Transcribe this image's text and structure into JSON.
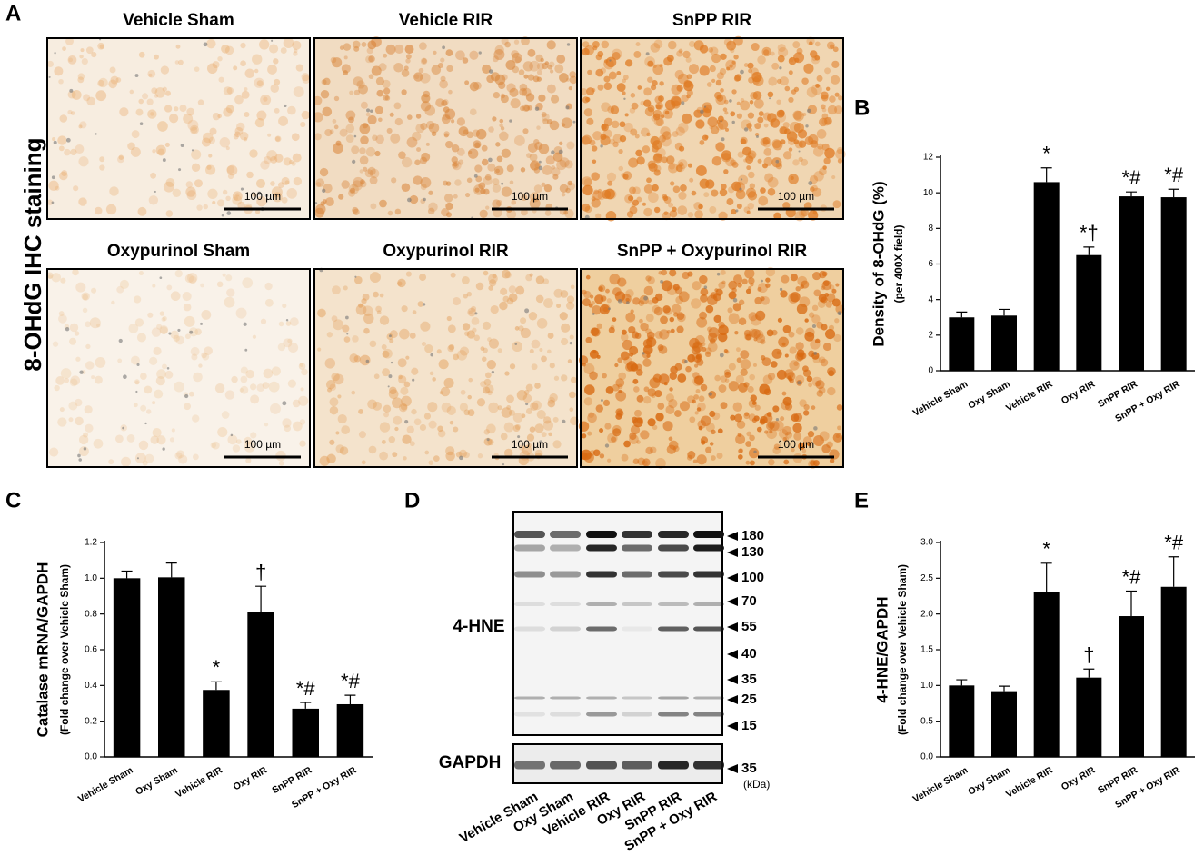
{
  "ihc": {
    "panel": "A",
    "side_label": "8-OHdG IHC staining",
    "titles": [
      "Vehicle Sham",
      "Vehicle RIR",
      "SnPP RIR",
      "Oxypurinol Sham",
      "Oxypurinol RIR",
      "SnPP + Oxypurinol RIR"
    ],
    "scale_bars": [
      "100 µm",
      "100 µm",
      "100 µm",
      "100 µm",
      "100 µm",
      "100 µm"
    ]
  },
  "western": {
    "panel": "D",
    "blot_labels": [
      "4-HNE",
      "GAPDH"
    ],
    "markers": [
      "180",
      "130",
      "100",
      "70",
      "55",
      "40",
      "35",
      "25",
      "15"
    ],
    "gapdh_marker": "35",
    "unit": "(kDa)",
    "lanes": [
      "Vehicle Sham",
      "Oxy Sham",
      "Vehicle RIR",
      "Oxy RIR",
      "SnPP RIR",
      "SnPP + Oxy RIR"
    ]
  },
  "chart_data": [
    {
      "type": "bar",
      "panel": "B",
      "y_label": "Density of 8-OHdG (%)",
      "y_sublabel": "(per 400X field)",
      "categories": [
        "Vehicle Sham",
        "Oxy Sham",
        "Vehicle RIR",
        "Oxy RIR",
        "SnPP RIR",
        "SnPP + Oxy RIR"
      ],
      "values": [
        3.0,
        3.1,
        10.6,
        6.5,
        9.8,
        9.75
      ],
      "error": [
        0.3,
        0.35,
        0.8,
        0.45,
        0.25,
        0.45
      ],
      "annotations": [
        null,
        null,
        "*",
        "*†",
        "*#",
        "*#"
      ],
      "color": "#000000",
      "ylim": [
        0,
        12
      ],
      "yticks": [
        0,
        2,
        4,
        6,
        8,
        10,
        12
      ]
    },
    {
      "type": "bar",
      "panel": "C",
      "y_label": "Catalase mRNA/GAPDH",
      "y_sublabel": "(Fold change over Vehicle Sham)",
      "categories": [
        "Vehicle Sham",
        "Oxy Sham",
        "Vehicle RIR",
        "Oxy RIR",
        "SnPP RIR",
        "SnPP + Oxy RIR"
      ],
      "values": [
        1.0,
        1.005,
        0.375,
        0.81,
        0.27,
        0.295
      ],
      "error": [
        0.04,
        0.08,
        0.045,
        0.145,
        0.035,
        0.05
      ],
      "annotations": [
        null,
        null,
        "*",
        "†",
        "*#",
        "*#"
      ],
      "color": "#000000",
      "ylim": [
        0,
        1.2
      ],
      "yticks": [
        {
          "value": 0,
          "label": "0.0"
        },
        0.2,
        0.4,
        0.6,
        0.8,
        {
          "value": 1,
          "label": "1.0"
        },
        1.2
      ]
    },
    {
      "type": "bar",
      "panel": "E",
      "y_label": "4-HNE/GAPDH",
      "y_sublabel": "(Fold change over Vehicle Sham)",
      "categories": [
        "Vehicle Sham",
        "Oxy Sham",
        "Vehicle RIR",
        "Oxy RIR",
        "SnPP RIR",
        "SnPP + Oxy RIR"
      ],
      "values": [
        1.0,
        0.92,
        2.31,
        1.11,
        1.97,
        2.38
      ],
      "error": [
        0.08,
        0.07,
        0.4,
        0.12,
        0.35,
        0.42
      ],
      "annotations": [
        null,
        null,
        "*",
        "†",
        "*#",
        "*#"
      ],
      "color": "#000000",
      "ylim": [
        0,
        3
      ],
      "yticks": [
        {
          "value": 0,
          "label": "0.0"
        },
        0.5,
        {
          "value": 1,
          "label": "1.0"
        },
        1.5,
        {
          "value": 2,
          "label": "2.0"
        },
        2.5,
        {
          "value": 3,
          "label": "3.0"
        }
      ]
    }
  ]
}
